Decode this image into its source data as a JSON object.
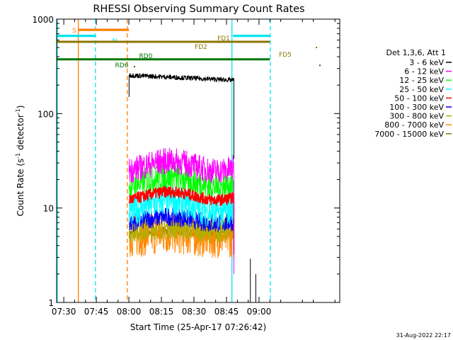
{
  "chart_data": {
    "type": "line",
    "title": "RHESSI Observing Summary Count Rates",
    "xlabel": "Start Time (25-Apr-17 07:26:42)",
    "ylabel_main": "Count Rate (s",
    "ylabel_sup1": "-1",
    "ylabel_mid": " detector",
    "ylabel_sup2": "-1",
    "ylabel_end": ")",
    "ylog": true,
    "ylim": [
      1,
      1000
    ],
    "xlim_min": [
      446.7,
      577.2
    ],
    "x_ticks": [
      {
        "min": 450,
        "label": "07:30"
      },
      {
        "min": 465,
        "label": "07:45"
      },
      {
        "min": 480,
        "label": "08:00"
      },
      {
        "min": 495,
        "label": "08:15"
      },
      {
        "min": 510,
        "label": "08:30"
      },
      {
        "min": 525,
        "label": "08:45"
      },
      {
        "min": 540,
        "label": "09:00"
      }
    ],
    "y_ticks": [
      {
        "value": 1,
        "label": "1"
      },
      {
        "value": 10,
        "label": "10"
      },
      {
        "value": 100,
        "label": "100"
      },
      {
        "value": 1000,
        "label": "1000"
      }
    ],
    "legend_title": "Det 1,3,6, Att 1",
    "legend_position": "right",
    "series": [
      {
        "name": "3 - 6 keV",
        "color": "#000000",
        "start": 480.1,
        "end": 528.4,
        "base": 240,
        "amp": 0.04,
        "noise": 0.05
      },
      {
        "name": "6 - 12 keV",
        "color": "#ff00ff",
        "start": 480.1,
        "end": 528.4,
        "base": 28,
        "amp": 0.12,
        "noise": 0.28
      },
      {
        "name": "12 - 25 keV",
        "color": "#00ff00",
        "start": 480.1,
        "end": 528.4,
        "base": 19,
        "amp": 0.12,
        "noise": 0.3
      },
      {
        "name": "25 - 50 keV",
        "color": "#00ffff",
        "start": 480.1,
        "end": 528.4,
        "base": 10.5,
        "amp": 0.14,
        "noise": 0.32
      },
      {
        "name": "50 - 100 keV",
        "color": "#ff0000",
        "start": 480.1,
        "end": 528.4,
        "base": 13.5,
        "amp": 0.1,
        "noise": 0.12
      },
      {
        "name": "100 - 300 keV",
        "color": "#0000ff",
        "start": 480.1,
        "end": 528.4,
        "base": 7.5,
        "amp": 0.08,
        "noise": 0.2
      },
      {
        "name": "300 - 800 keV",
        "color": "#b0b000",
        "start": 480.1,
        "end": 528.4,
        "base": 6.0,
        "amp": 0.05,
        "noise": 0.25
      },
      {
        "name": "800 - 7000 keV",
        "color": "#ff8800",
        "start": 480.1,
        "end": 528.4,
        "base": 5.2,
        "amp": 0.05,
        "noise": 0.45
      },
      {
        "name": "7000 - 15000 keV",
        "color": "#8b7500",
        "start": 480.1,
        "end": 528.4,
        "base": 5.5,
        "amp": 0.03,
        "noise": 0.1
      }
    ],
    "flags": [
      {
        "label": "S",
        "color": "#ff7f00",
        "y_value": 770,
        "start": 456.7,
        "end": 480.0
      },
      {
        "label": "N",
        "color": "#00e5ee",
        "y_value": 665,
        "start": 446.7,
        "end": 464.6
      },
      {
        "label": "N",
        "color": "#00e5ee",
        "y_value": 665,
        "start": 528.0,
        "end": 545.0
      },
      {
        "label": "FD1",
        "color": "#8b7500",
        "y_value": 575,
        "start": 446.7,
        "end": 545.0
      },
      {
        "label": "FD2",
        "color": "#8b7500",
        "y_value": 575,
        "start": 446.7,
        "end": 545.0
      },
      {
        "label": "FD5",
        "color": "#8b7500",
        "y_value": 575,
        "start": 446.7,
        "end": 545.0
      },
      {
        "label": "RD6",
        "color": "#007700",
        "y_value": 375,
        "start": 446.7,
        "end": 545.0
      },
      {
        "label": "RD0",
        "color": "#007700",
        "y_value": 375,
        "start": 446.7,
        "end": 545.0
      }
    ],
    "vlines": [
      {
        "min": 447.0,
        "color": "#00e5ee",
        "dash": false
      },
      {
        "min": 456.7,
        "color": "#ff7f00",
        "dash": false
      },
      {
        "min": 464.6,
        "color": "#00e5ee",
        "dash": true
      },
      {
        "min": 479.3,
        "color": "#ff7f00",
        "dash": true
      },
      {
        "min": 527.5,
        "color": "#00e5ee",
        "dash": false
      },
      {
        "min": 545.2,
        "color": "#00e5ee",
        "dash": true
      }
    ],
    "spikes": [
      {
        "min": 536.0,
        "top": 2.9
      },
      {
        "min": 538.5,
        "top": 2.0
      }
    ],
    "timestamp": "31-Aug-2022 22:17"
  }
}
